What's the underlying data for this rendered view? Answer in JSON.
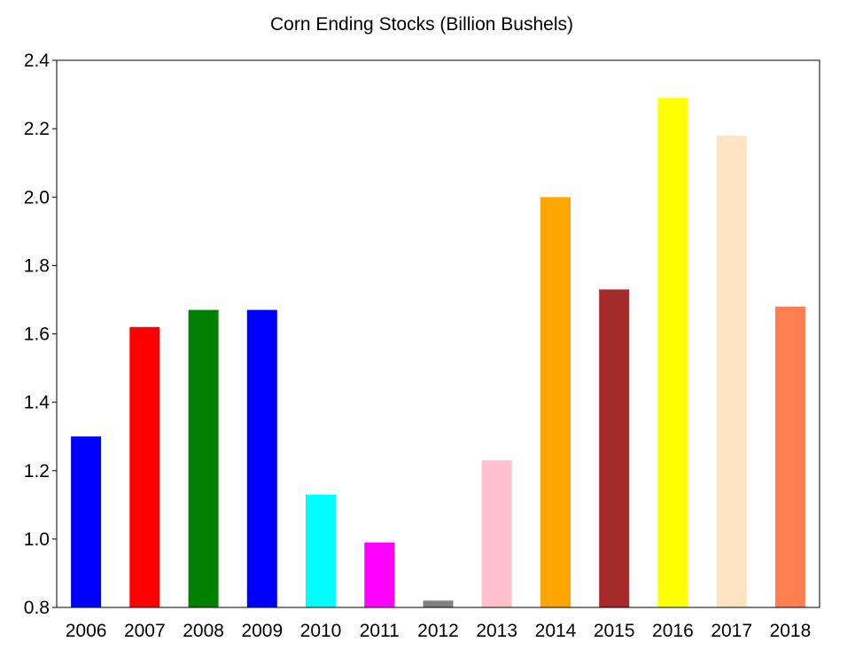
{
  "chart_data": {
    "type": "bar",
    "title": "Corn Ending Stocks (Billion Bushels)",
    "xlabel": "",
    "ylabel": "",
    "categories": [
      "2006",
      "2007",
      "2008",
      "2009",
      "2010",
      "2011",
      "2012",
      "2013",
      "2014",
      "2015",
      "2016",
      "2017",
      "2018"
    ],
    "values": [
      1.3,
      1.62,
      1.67,
      1.67,
      1.13,
      0.99,
      0.82,
      1.23,
      2.0,
      1.73,
      2.29,
      2.18,
      1.68
    ],
    "colors": [
      "#0000ff",
      "#ff0000",
      "#008000",
      "#0000ff",
      "#00ffff",
      "#ff00ff",
      "#808080",
      "#ffc0cb",
      "#ffa500",
      "#a52a2a",
      "#ffff00",
      "#ffe4c4",
      "#ff7f50"
    ],
    "ylim": [
      0.8,
      2.4
    ],
    "yticks": [
      "0.8",
      "1.0",
      "1.2",
      "1.4",
      "1.6",
      "1.8",
      "2.0",
      "2.2",
      "2.4"
    ],
    "grid": false,
    "legend": "none"
  }
}
